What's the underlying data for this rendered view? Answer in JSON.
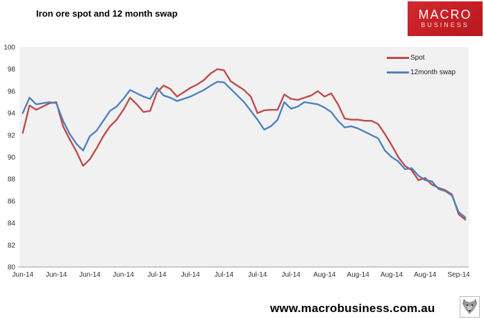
{
  "header": {
    "title": "Iron ore spot and 12 month swap"
  },
  "logo": {
    "line1": "MACRO",
    "line2": "BUSINESS",
    "bg_color": "#c51e24"
  },
  "footer": {
    "url": "www.macrobusiness.com.au",
    "icon": "wolf-stamp-icon"
  },
  "chart_data": {
    "type": "line",
    "title": "Iron ore spot and 12 month swap",
    "xlabel": "",
    "ylabel": "",
    "ylim": [
      80,
      100
    ],
    "y_ticks": [
      80,
      82,
      84,
      86,
      88,
      90,
      92,
      94,
      96,
      98,
      100
    ],
    "grid": false,
    "plot_bg": "#f1f1f2",
    "axis_line_color": "#9a9a9a",
    "legend_position": "top-right-inside",
    "x_label_every": 5,
    "x_labels": [
      "Jun-14",
      "Jun-14",
      "Jun-14",
      "Jun-14",
      "Jul-14",
      "Jul-14",
      "Jul-14",
      "Jul-14",
      "Jul-14",
      "Aug-14",
      "Aug-14",
      "Aug-14",
      "Aug-14",
      "Sep-14"
    ],
    "series": [
      {
        "name": "Spot",
        "color": "#be4b48",
        "values": [
          92.2,
          94.7,
          94.3,
          94.6,
          94.9,
          95.0,
          92.8,
          91.6,
          90.5,
          89.2,
          89.8,
          90.8,
          91.9,
          92.8,
          93.4,
          94.3,
          95.4,
          94.8,
          94.1,
          94.2,
          95.9,
          96.5,
          96.2,
          95.5,
          95.9,
          96.3,
          96.6,
          97.0,
          97.6,
          98.0,
          97.9,
          96.9,
          96.5,
          96.1,
          95.5,
          94.0,
          94.25,
          94.3,
          94.3,
          95.7,
          95.3,
          95.2,
          95.4,
          95.6,
          96.0,
          95.5,
          95.8,
          94.8,
          93.5,
          93.4,
          93.4,
          93.3,
          93.3,
          93.0,
          92.1,
          91.1,
          90.0,
          89.2,
          88.8,
          87.9,
          88.1,
          87.5,
          87.2,
          87.0,
          86.6,
          84.8,
          84.3
        ]
      },
      {
        "name": "12month swap",
        "color": "#4f81bd",
        "values": [
          94.0,
          95.4,
          94.8,
          94.9,
          95.0,
          94.9,
          93.3,
          92.1,
          91.2,
          90.6,
          91.9,
          92.4,
          93.3,
          94.2,
          94.6,
          95.3,
          96.1,
          95.8,
          95.5,
          95.3,
          96.3,
          95.6,
          95.4,
          95.1,
          95.3,
          95.5,
          95.8,
          96.1,
          96.5,
          96.85,
          96.8,
          96.2,
          95.6,
          95.0,
          94.2,
          93.4,
          92.5,
          92.8,
          93.4,
          95.0,
          94.4,
          94.6,
          95.0,
          94.9,
          94.8,
          94.5,
          94.1,
          93.3,
          92.7,
          92.8,
          92.6,
          92.3,
          92.0,
          91.7,
          90.6,
          90.0,
          89.6,
          88.9,
          89.0,
          88.3,
          87.9,
          87.8,
          87.1,
          86.9,
          86.5,
          85.0,
          84.5
        ]
      }
    ]
  }
}
